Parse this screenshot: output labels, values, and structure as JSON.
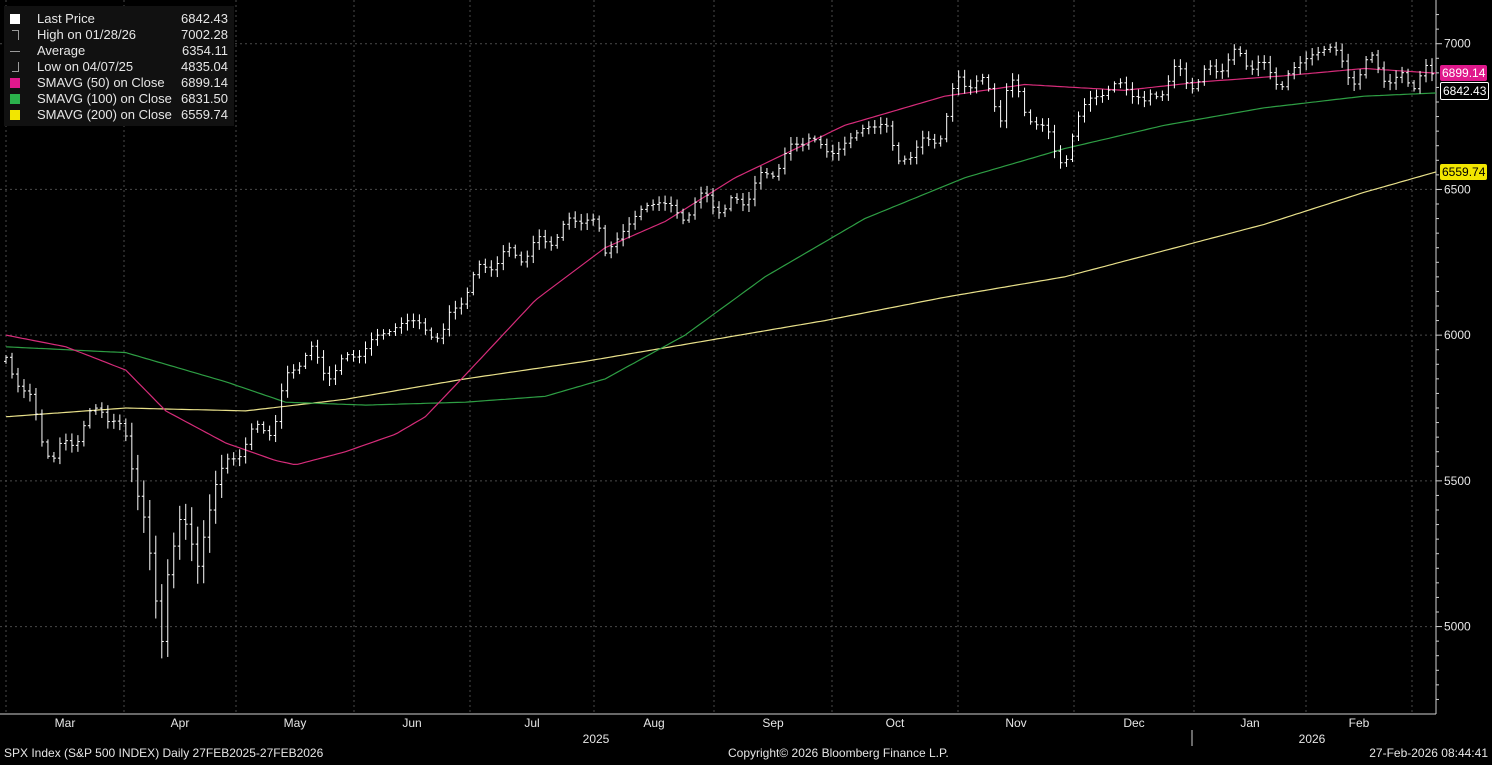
{
  "chart_data": {
    "type": "line",
    "ylim": [
      4700,
      7150
    ],
    "yticks": [
      5000,
      5500,
      6000,
      6500,
      7000
    ],
    "ytick_labels": [
      "5000",
      "5500",
      "6000",
      "6500",
      "7000"
    ],
    "x_months": [
      "Mar",
      "Apr",
      "May",
      "Jun",
      "Jul",
      "Aug",
      "Sep",
      "Oct",
      "Nov",
      "Dec",
      "Jan",
      "Feb"
    ],
    "x_years": [
      "2025",
      "2026"
    ],
    "price_knots": [
      [
        0,
        5910
      ],
      [
        6,
        5850
      ],
      [
        12,
        5770
      ],
      [
        18,
        5650
      ],
      [
        24,
        5580
      ],
      [
        32,
        5630
      ],
      [
        40,
        5700
      ],
      [
        48,
        5750
      ],
      [
        55,
        5700
      ],
      [
        60,
        5640
      ],
      [
        64,
        5520
      ],
      [
        70,
        5350
      ],
      [
        75,
        5080
      ],
      [
        78,
        4950
      ],
      [
        80,
        5150
      ],
      [
        84,
        5280
      ],
      [
        88,
        5400
      ],
      [
        92,
        5300
      ],
      [
        96,
        5200
      ],
      [
        100,
        5350
      ],
      [
        104,
        5480
      ],
      [
        110,
        5550
      ],
      [
        116,
        5600
      ],
      [
        122,
        5650
      ],
      [
        128,
        5680
      ],
      [
        134,
        5690
      ],
      [
        140,
        5830
      ],
      [
        146,
        5920
      ],
      [
        152,
        5950
      ],
      [
        156,
        5900
      ],
      [
        160,
        5870
      ],
      [
        166,
        5890
      ],
      [
        172,
        5920
      ],
      [
        180,
        5960
      ],
      [
        190,
        6010
      ],
      [
        200,
        6050
      ],
      [
        206,
        6040
      ],
      [
        212,
        6010
      ],
      [
        218,
        5990
      ],
      [
        222,
        6060
      ],
      [
        228,
        6130
      ],
      [
        236,
        6210
      ],
      [
        244,
        6260
      ],
      [
        252,
        6270
      ],
      [
        262,
        6290
      ],
      [
        272,
        6330
      ],
      [
        282,
        6380
      ],
      [
        290,
        6410
      ],
      [
        296,
        6380
      ],
      [
        300,
        6280
      ],
      [
        304,
        6320
      ],
      [
        312,
        6380
      ],
      [
        320,
        6440
      ],
      [
        326,
        6470
      ],
      [
        332,
        6430
      ],
      [
        338,
        6410
      ],
      [
        344,
        6440
      ],
      [
        352,
        6480
      ],
      [
        360,
        6420
      ],
      [
        366,
        6460
      ],
      [
        372,
        6490
      ],
      [
        380,
        6540
      ],
      [
        388,
        6600
      ],
      [
        396,
        6650
      ],
      [
        402,
        6690
      ],
      [
        408,
        6640
      ],
      [
        412,
        6620
      ],
      [
        420,
        6660
      ],
      [
        428,
        6700
      ],
      [
        434,
        6720
      ],
      [
        440,
        6740
      ],
      [
        446,
        6580
      ],
      [
        450,
        6620
      ],
      [
        456,
        6640
      ],
      [
        462,
        6660
      ],
      [
        468,
        6700
      ],
      [
        472,
        6760
      ],
      [
        476,
        6870
      ],
      [
        482,
        6880
      ],
      [
        488,
        6860
      ],
      [
        494,
        6820
      ],
      [
        498,
        6760
      ],
      [
        502,
        6860
      ],
      [
        506,
        6840
      ],
      [
        510,
        6780
      ],
      [
        516,
        6720
      ],
      [
        522,
        6690
      ],
      [
        526,
        6620
      ],
      [
        530,
        6580
      ],
      [
        534,
        6680
      ],
      [
        538,
        6770
      ],
      [
        544,
        6820
      ],
      [
        552,
        6840
      ],
      [
        560,
        6860
      ],
      [
        566,
        6830
      ],
      [
        570,
        6780
      ],
      [
        574,
        6820
      ],
      [
        580,
        6860
      ],
      [
        586,
        6900
      ],
      [
        592,
        6880
      ],
      [
        598,
        6870
      ],
      [
        604,
        6910
      ],
      [
        610,
        6940
      ],
      [
        616,
        6960
      ],
      [
        622,
        6930
      ],
      [
        628,
        6940
      ],
      [
        634,
        6880
      ],
      [
        638,
        6850
      ],
      [
        642,
        6900
      ],
      [
        648,
        6930
      ],
      [
        654,
        6960
      ],
      [
        660,
        6990
      ],
      [
        664,
        6990
      ],
      [
        668,
        6940
      ],
      [
        672,
        6890
      ],
      [
        676,
        6880
      ],
      [
        680,
        6920
      ],
      [
        684,
        6940
      ],
      [
        688,
        6920
      ],
      [
        692,
        6880
      ],
      [
        696,
        6860
      ],
      [
        700,
        6880
      ],
      [
        704,
        6870
      ],
      [
        708,
        6900
      ],
      [
        712,
        6900
      ],
      [
        716,
        6842
      ]
    ],
    "price_stats": {
      "last": 6842.43,
      "high": 7002.28,
      "avg": 6354.11,
      "low": 4835.04
    },
    "sma50_knots": [
      [
        0,
        6000
      ],
      [
        30,
        5960
      ],
      [
        60,
        5880
      ],
      [
        80,
        5740
      ],
      [
        110,
        5630
      ],
      [
        135,
        5570
      ],
      [
        145,
        5555
      ],
      [
        170,
        5600
      ],
      [
        195,
        5660
      ],
      [
        210,
        5720
      ],
      [
        235,
        5900
      ],
      [
        265,
        6120
      ],
      [
        300,
        6300
      ],
      [
        330,
        6390
      ],
      [
        365,
        6540
      ],
      [
        420,
        6720
      ],
      [
        470,
        6820
      ],
      [
        510,
        6860
      ],
      [
        560,
        6840
      ],
      [
        600,
        6870
      ],
      [
        640,
        6890
      ],
      [
        680,
        6915
      ],
      [
        716,
        6899
      ]
    ],
    "sma100_knots": [
      [
        0,
        5960
      ],
      [
        60,
        5940
      ],
      [
        110,
        5840
      ],
      [
        140,
        5770
      ],
      [
        180,
        5760
      ],
      [
        230,
        5770
      ],
      [
        270,
        5790
      ],
      [
        300,
        5850
      ],
      [
        340,
        6000
      ],
      [
        380,
        6200
      ],
      [
        430,
        6400
      ],
      [
        480,
        6540
      ],
      [
        530,
        6640
      ],
      [
        580,
        6720
      ],
      [
        630,
        6780
      ],
      [
        680,
        6820
      ],
      [
        716,
        6831
      ]
    ],
    "sma200_knots": [
      [
        0,
        5720
      ],
      [
        60,
        5750
      ],
      [
        120,
        5740
      ],
      [
        170,
        5780
      ],
      [
        230,
        5850
      ],
      [
        290,
        5910
      ],
      [
        350,
        5980
      ],
      [
        410,
        6050
      ],
      [
        470,
        6130
      ],
      [
        530,
        6200
      ],
      [
        580,
        6290
      ],
      [
        630,
        6380
      ],
      [
        680,
        6490
      ],
      [
        716,
        6560
      ]
    ],
    "legend": [
      {
        "label": "Last Price",
        "value": "6842.43",
        "marker": "square",
        "color": "#ffffff"
      },
      {
        "label": "High on 01/28/26",
        "value": "7002.28",
        "marker": "high",
        "color": "#9a9a9a"
      },
      {
        "label": "Average",
        "value": "6354.11",
        "marker": "avg",
        "color": "#9a9a9a"
      },
      {
        "label": "Low on 04/07/25",
        "value": "4835.04",
        "marker": "low",
        "color": "#9a9a9a"
      },
      {
        "label": "SMAVG (50)  on Close",
        "value": "6899.14",
        "marker": "square",
        "color": "#e0188c"
      },
      {
        "label": "SMAVG (100)  on Close",
        "value": "6831.50",
        "marker": "square",
        "color": "#2bb24c"
      },
      {
        "label": "SMAVG (200)  on Close",
        "value": "6559.74",
        "marker": "square",
        "color": "#f2e600"
      }
    ],
    "last_labels": [
      {
        "text": "6899.14",
        "value": 6899.14,
        "bg": "#e0188c",
        "fg": "#ffffff"
      },
      {
        "text": "6842.43",
        "value": 6842.43,
        "bg": "#000000",
        "fg": "#ffffff",
        "border": "#ffffff"
      },
      {
        "text": "6559.74",
        "value": 6559.74,
        "bg": "#f2e600",
        "fg": "#000000"
      }
    ],
    "colors": {
      "price": "#ffffff",
      "sma50": "#d62c7a",
      "sma100": "#2e9e44",
      "sma200": "#e8e08a",
      "grid": "#4a4a4a",
      "axis": "#cfcfcf"
    }
  },
  "footer": {
    "left": "SPX Index (S&P 500 INDEX) Daily 27FEB2025-27FEB2026",
    "center": "Copyright© 2026 Bloomberg Finance L.P.",
    "right": "27-Feb-2026 08:44:41"
  }
}
